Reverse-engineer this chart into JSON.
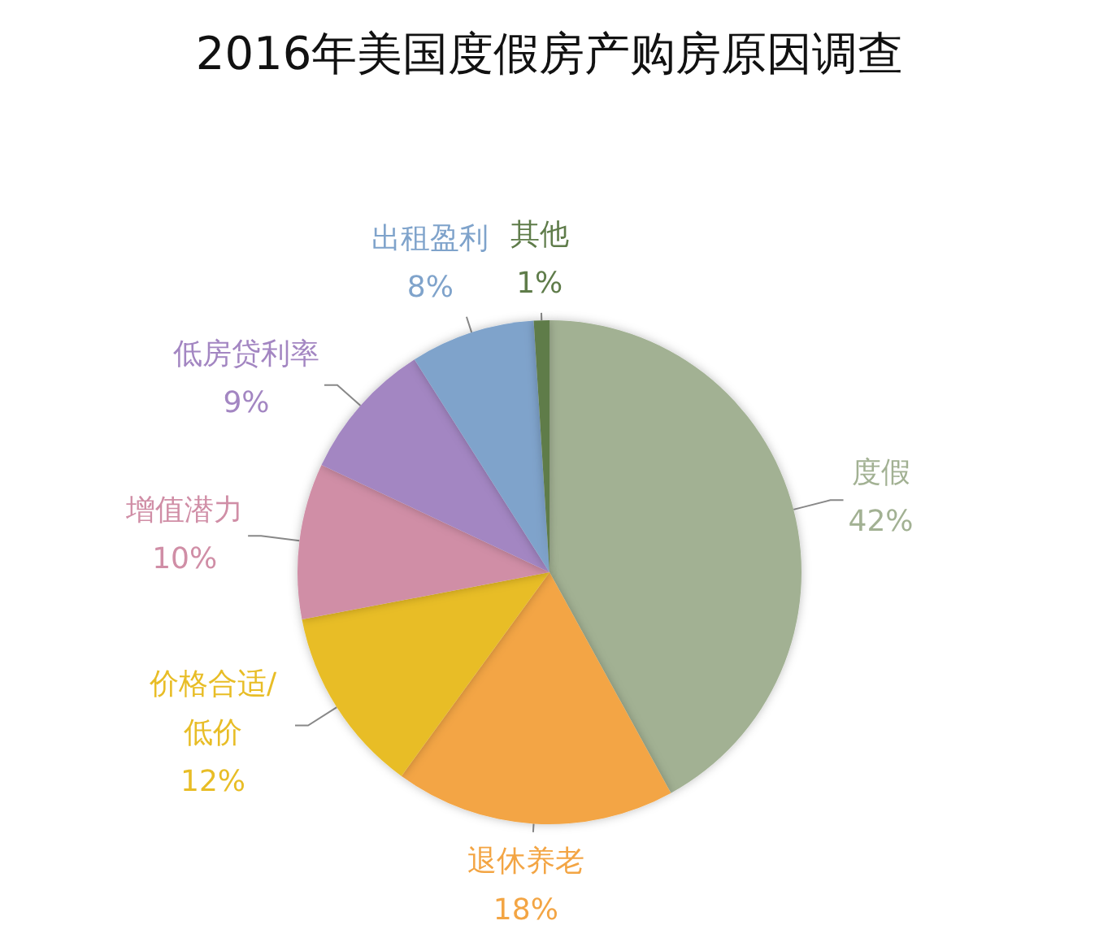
{
  "chart_data": {
    "type": "pie",
    "title": "2016年美国度假房产购房原因调查",
    "categories": [
      "度假",
      "退休养老",
      "价格合适/低价",
      "增值潜力",
      "低房贷利率",
      "出租盈利",
      "其他"
    ],
    "values": [
      42,
      18,
      12,
      10,
      9,
      8,
      1
    ],
    "value_labels": [
      "42%",
      "18%",
      "12%",
      "10%",
      "9%",
      "8%",
      "1%"
    ],
    "colors": [
      "#a2b193",
      "#f3a544",
      "#e8bd26",
      "#d08ea6",
      "#a386c2",
      "#7fa3cb",
      "#5f7c4a"
    ]
  }
}
